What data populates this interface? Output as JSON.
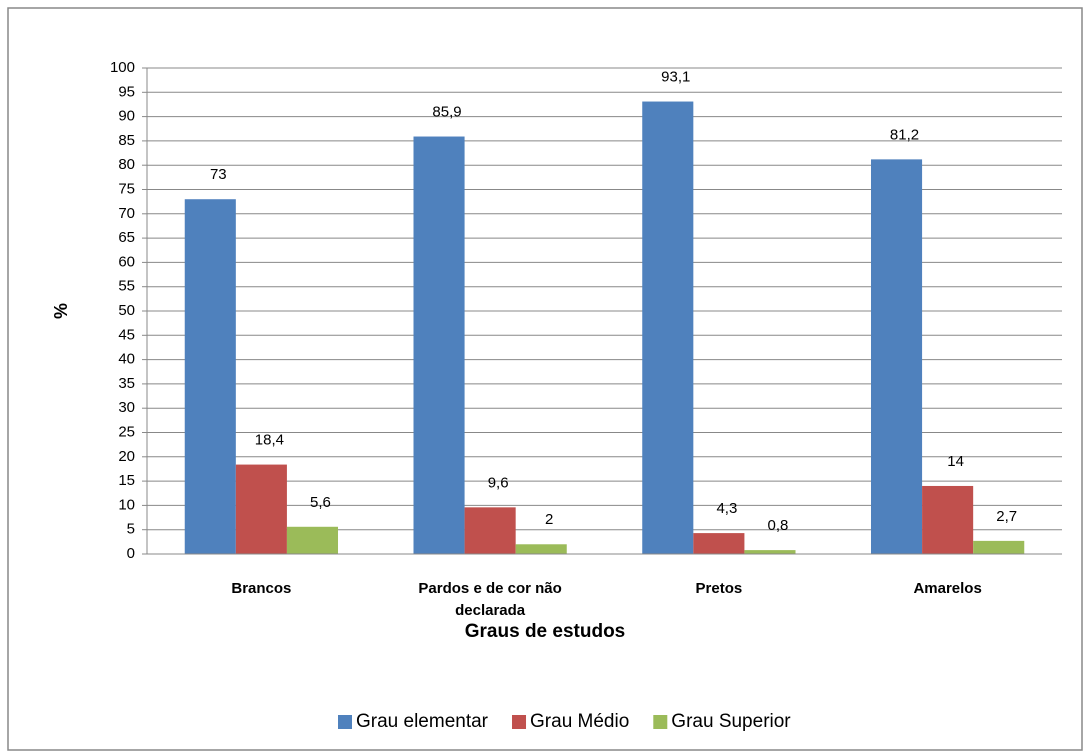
{
  "chart_data": {
    "type": "bar",
    "categories": [
      "Brancos",
      "Pardos e de cor não declarada",
      "Pretos",
      "Amarelos"
    ],
    "series": [
      {
        "name": "Grau elementar",
        "color": "#4f81bd",
        "values": [
          73,
          85.9,
          93.1,
          81.2
        ],
        "value_labels": [
          "73",
          "85,9",
          "93,1",
          "81,2"
        ]
      },
      {
        "name": "Grau Médio",
        "color": "#c0504d",
        "values": [
          18.4,
          9.6,
          4.3,
          14
        ],
        "value_labels": [
          "18,4",
          "9,6",
          "4,3",
          "14"
        ]
      },
      {
        "name": "Grau Superior",
        "color": "#9bbb59",
        "values": [
          5.6,
          2,
          0.8,
          2.7
        ],
        "value_labels": [
          "5,6",
          "2",
          "0,8",
          "2,7"
        ]
      }
    ],
    "ylabel": "%",
    "xlabel": "Graus de estudos",
    "ylim": [
      0,
      100
    ],
    "yticks": [
      0,
      5,
      10,
      15,
      20,
      25,
      30,
      35,
      40,
      45,
      50,
      55,
      60,
      65,
      70,
      75,
      80,
      85,
      90,
      95,
      100
    ],
    "grid": true,
    "legend": "bottom"
  }
}
